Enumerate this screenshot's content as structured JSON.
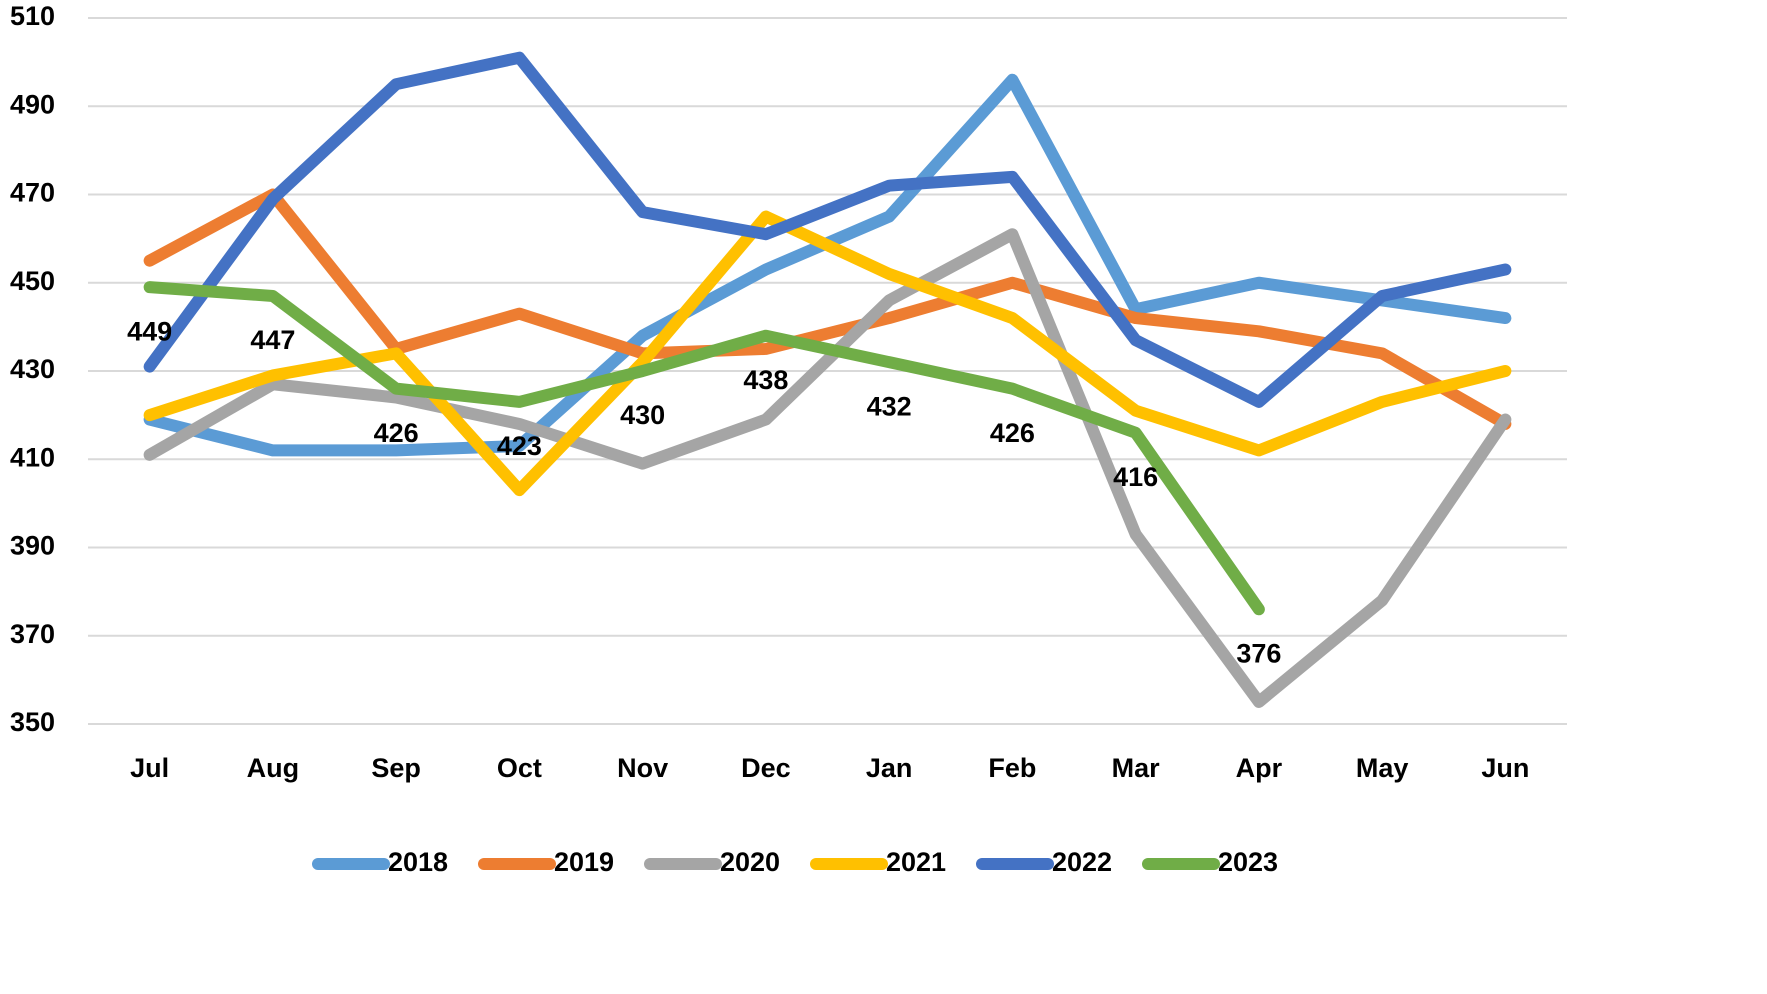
{
  "chart_data": {
    "type": "line",
    "categories": [
      "Jul",
      "Aug",
      "Sep",
      "Oct",
      "Nov",
      "Dec",
      "Jan",
      "Feb",
      "Mar",
      "Apr",
      "May",
      "Jun"
    ],
    "ylim": [
      350,
      510
    ],
    "yticks": [
      350,
      370,
      390,
      410,
      430,
      450,
      470,
      490,
      510
    ],
    "grid": true,
    "legend": "bottom",
    "series": [
      {
        "name": "2018",
        "color": "#5b9bd5",
        "values": [
          419,
          412,
          412,
          413,
          438,
          453,
          465,
          496,
          444,
          450,
          446,
          442
        ]
      },
      {
        "name": "2019",
        "color": "#ed7d31",
        "values": [
          455,
          470,
          435,
          443,
          434,
          435,
          442,
          450,
          442,
          439,
          434,
          418
        ]
      },
      {
        "name": "2020",
        "color": "#a5a5a5",
        "values": [
          411,
          427,
          424,
          418,
          409,
          419,
          446,
          461,
          393,
          355,
          378,
          419
        ]
      },
      {
        "name": "2021",
        "color": "#ffc000",
        "values": [
          420,
          429,
          434,
          403,
          432,
          465,
          452,
          442,
          421,
          412,
          423,
          430
        ]
      },
      {
        "name": "2022",
        "color": "#4472c4",
        "values": [
          431,
          469,
          495,
          501,
          466,
          461,
          472,
          474,
          437,
          423,
          447,
          453
        ]
      },
      {
        "name": "2023",
        "color": "#70ad47",
        "data_labels": true,
        "values": [
          449,
          447,
          426,
          423,
          430,
          438,
          432,
          426,
          416,
          376,
          null,
          null
        ]
      }
    ]
  }
}
